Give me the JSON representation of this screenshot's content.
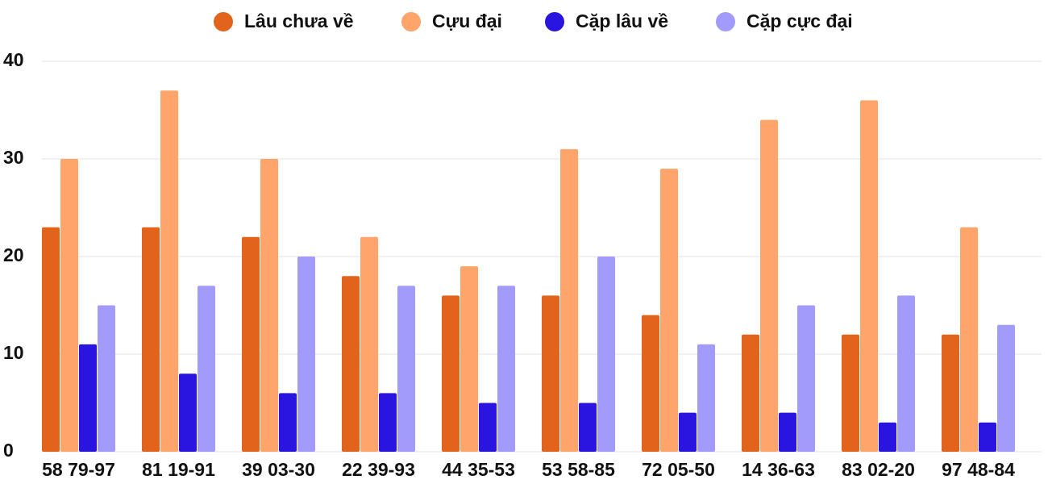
{
  "chart_data": {
    "type": "bar",
    "categories": [
      "58 79-97",
      "81 19-91",
      "39 03-30",
      "22 39-93",
      "44 35-53",
      "53 58-85",
      "72 05-50",
      "14 36-63",
      "83 02-20",
      "97 48-84"
    ],
    "series": [
      {
        "name": "Lâu chưa về",
        "color": "#e2631b",
        "values": [
          23,
          23,
          22,
          18,
          16,
          16,
          14,
          12,
          12,
          12
        ]
      },
      {
        "name": "Cựu đại",
        "color": "#ffa46a",
        "values": [
          30,
          37,
          30,
          22,
          19,
          31,
          29,
          34,
          36,
          23
        ]
      },
      {
        "name": "Cặp lâu về",
        "color": "#2a14e0",
        "values": [
          11,
          8,
          6,
          6,
          5,
          5,
          4,
          4,
          3,
          3
        ]
      },
      {
        "name": "Cặp cực đại",
        "color": "#a29bfb",
        "values": [
          15,
          17,
          20,
          17,
          17,
          20,
          11,
          15,
          16,
          13
        ]
      }
    ],
    "ylim": [
      0,
      40
    ],
    "yticks": [
      0,
      10,
      20,
      30,
      40
    ],
    "grid": true,
    "legend": "top"
  }
}
